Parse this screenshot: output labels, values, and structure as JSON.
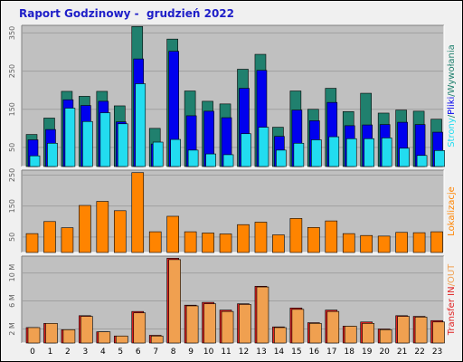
{
  "title": "Raport Godzinowy -  grudzień 2022",
  "colors": {
    "background": "#f0f0f0",
    "plot_bg": "#c0c0c0",
    "title": "#1e1ec8",
    "hits": "#20806e",
    "files": "#0000ee",
    "pages": "#22dcf0",
    "visits": "#ff8400",
    "transfer_in": "#e02020",
    "transfer_out": "#f0a050"
  },
  "chart_data": [
    {
      "type": "bar",
      "name": "hits-files-pages",
      "categories": [
        "0",
        "1",
        "2",
        "3",
        "4",
        "5",
        "6",
        "7",
        "8",
        "9",
        "10",
        "11",
        "12",
        "13",
        "14",
        "15",
        "16",
        "17",
        "18",
        "19",
        "20",
        "21",
        "22",
        "23"
      ],
      "series": [
        {
          "name": "Wywołania",
          "values": [
            84,
            127,
            197,
            184,
            197,
            159,
            367,
            100,
            334,
            198,
            171,
            164,
            255,
            294,
            103,
            198,
            150,
            205,
            144,
            192,
            140,
            148,
            145,
            124
          ]
        },
        {
          "name": "Pliki",
          "values": [
            70,
            97,
            175,
            160,
            171,
            117,
            282,
            59,
            302,
            133,
            145,
            128,
            205,
            252,
            79,
            148,
            120,
            168,
            107,
            109,
            110,
            116,
            110,
            90
          ]
        },
        {
          "name": "Strony",
          "values": [
            28,
            61,
            153,
            118,
            141,
            112,
            217,
            64,
            71,
            43,
            33,
            31,
            86,
            103,
            43,
            61,
            70,
            78,
            73,
            73,
            75,
            48,
            29,
            42
          ]
        }
      ],
      "ylabel": {
        "parts": [
          {
            "key": "Strony",
            "text": "Strony",
            "color": "#22dcf0"
          },
          {
            "key": "sep1",
            "text": "/",
            "color": "#20806e"
          },
          {
            "key": "Pliki",
            "text": "Pliki",
            "color": "#0000ee"
          },
          {
            "key": "sep2",
            "text": "/",
            "color": "#20806e"
          },
          {
            "key": "Wywolania",
            "text": "Wywołania",
            "color": "#20806e"
          }
        ]
      },
      "yticks": [
        "50",
        "150",
        "250",
        "350"
      ],
      "ytick_values": [
        50,
        150,
        250,
        350
      ],
      "ylim": [
        0,
        370
      ]
    },
    {
      "type": "bar",
      "name": "visits",
      "categories": [
        "0",
        "1",
        "2",
        "3",
        "4",
        "5",
        "6",
        "7",
        "8",
        "9",
        "10",
        "11",
        "12",
        "13",
        "14",
        "15",
        "16",
        "17",
        "18",
        "19",
        "20",
        "21",
        "22",
        "23"
      ],
      "series": [
        {
          "name": "Lokalizacje",
          "values": [
            61,
            100,
            80,
            152,
            165,
            135,
            258,
            67,
            117,
            67,
            63,
            60,
            90,
            98,
            57,
            110,
            81,
            102,
            61,
            55,
            53,
            65,
            64,
            67
          ]
        }
      ],
      "ylabel": {
        "parts": [
          {
            "key": "Lokalizacje",
            "text": "Lokalizacje",
            "color": "#ff8400"
          }
        ]
      },
      "yticks": [
        "50",
        "150",
        "250"
      ],
      "ytick_values": [
        50,
        150,
        250
      ],
      "ylim": [
        0,
        266
      ]
    },
    {
      "type": "bar",
      "name": "transfer",
      "categories": [
        "0",
        "1",
        "2",
        "3",
        "4",
        "5",
        "6",
        "7",
        "8",
        "9",
        "10",
        "11",
        "12",
        "13",
        "14",
        "15",
        "16",
        "17",
        "18",
        "19",
        "20",
        "21",
        "22",
        "23"
      ],
      "series": [
        {
          "name": "IN",
          "values": [
            2.2,
            2.8,
            1.9,
            3.9,
            1.6,
            1.0,
            4.5,
            1.1,
            12.1,
            5.4,
            5.8,
            4.7,
            5.6,
            8.1,
            2.3,
            5.0,
            2.9,
            4.7,
            2.4,
            3.0,
            2.0,
            3.9,
            3.8,
            3.2
          ]
        },
        {
          "name": "OUT",
          "values": [
            2.2,
            2.8,
            1.9,
            3.8,
            1.6,
            1.0,
            4.3,
            1.0,
            11.9,
            5.3,
            5.6,
            4.5,
            5.5,
            8.0,
            2.2,
            4.8,
            2.8,
            4.5,
            2.4,
            2.8,
            1.9,
            3.8,
            3.7,
            3.0
          ]
        }
      ],
      "ylabel": {
        "parts": [
          {
            "key": "Transfer",
            "text": "Transfer",
            "color": "#e02020"
          },
          {
            "key": "sp1",
            "text": " ",
            "color": "#f0f0f0"
          },
          {
            "key": "IN",
            "text": "IN",
            "color": "#e02020"
          },
          {
            "key": "sep",
            "text": "/",
            "color": "#f0a050"
          },
          {
            "key": "OUT",
            "text": "OUT",
            "color": "#f0a050"
          }
        ]
      },
      "yticks": [
        "2 M",
        "6 M",
        "10 M"
      ],
      "ytick_values": [
        2,
        6,
        10
      ],
      "ylim": [
        0,
        12.4
      ]
    }
  ]
}
